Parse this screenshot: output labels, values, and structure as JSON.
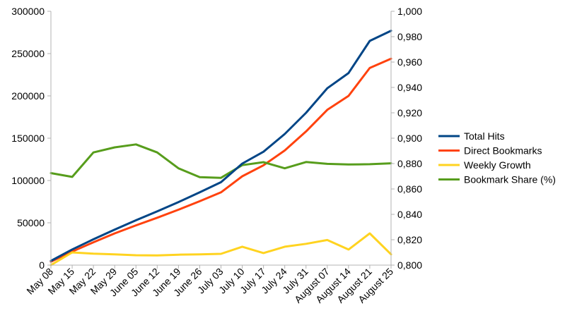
{
  "chart_data": {
    "type": "line",
    "categories": [
      "May 08",
      "May 15",
      "May 22",
      "May 29",
      "June 05",
      "June 12",
      "June 19",
      "June 26",
      "July 03",
      "July 10",
      "July 17",
      "July 24",
      "July 31",
      "August 07",
      "August 14",
      "August 21",
      "August 25"
    ],
    "y_left": {
      "range": [
        0,
        300000
      ],
      "ticks": [
        "0",
        "50000",
        "100000",
        "150000",
        "200000",
        "250000",
        "300000"
      ]
    },
    "y_right": {
      "range": [
        0.8,
        1.0
      ],
      "ticks": [
        "0,800",
        "0,820",
        "0,840",
        "0,860",
        "0,880",
        "0,900",
        "0,920",
        "0,940",
        "0,960",
        "0,980",
        "1,000"
      ]
    },
    "grid": false,
    "legend_position": "right",
    "series": [
      {
        "name": "Total Hits",
        "axis": "left",
        "color": "#004586",
        "values": [
          5000,
          18500,
          30500,
          42000,
          53000,
          63500,
          74500,
          86000,
          98000,
          120000,
          134000,
          155000,
          180000,
          209000,
          227000,
          265000,
          277000
        ]
      },
      {
        "name": "Direct Bookmarks",
        "axis": "left",
        "color": "#ff420e",
        "values": [
          4000,
          16000,
          27000,
          37500,
          47000,
          56000,
          65500,
          75500,
          86000,
          105000,
          118000,
          135500,
          158000,
          183500,
          200000,
          233000,
          244000
        ]
      },
      {
        "name": "Weekly Growth",
        "axis": "right",
        "color": "#ffd320",
        "values": [
          0.8,
          0.81,
          0.809,
          0.8085,
          0.8078,
          0.8076,
          0.8082,
          0.8085,
          0.8089,
          0.8145,
          0.8095,
          0.8145,
          0.8168,
          0.8198,
          0.8123,
          0.825,
          0.8085
        ]
      },
      {
        "name": "Bookmark Share (%)",
        "axis": "right",
        "color": "#579d1c",
        "values": [
          0.8725,
          0.8695,
          0.8888,
          0.8928,
          0.8951,
          0.8888,
          0.8763,
          0.8693,
          0.8688,
          0.8788,
          0.8811,
          0.8763,
          0.8812,
          0.8798,
          0.8793,
          0.8795,
          0.8802
        ]
      }
    ]
  }
}
